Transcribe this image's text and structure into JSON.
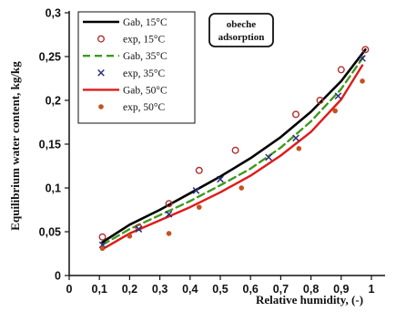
{
  "chart_data": {
    "type": "scatter",
    "xlabel": "Relative humidity, (-)",
    "ylabel": "Equilibrium water content, kg/kg",
    "xlim": [
      0,
      1
    ],
    "ylim": [
      0,
      0.3
    ],
    "x_ticks": [
      "0",
      "0,1",
      "0,2",
      "0,3",
      "0,4",
      "0,5",
      "0,6",
      "0,7",
      "0,8",
      "0,9",
      "1"
    ],
    "y_ticks": [
      "0",
      "0,05",
      "0,1",
      "0,15",
      "0,2",
      "0,25",
      "0,3"
    ],
    "grid": false,
    "legend_position": "top-left",
    "annotation": [
      "obeche",
      "adsorption"
    ],
    "series": [
      {
        "name": "Gab, 15°C",
        "kind": "line",
        "style": "solid",
        "color": "#000000",
        "x": [
          0.11,
          0.2,
          0.3,
          0.4,
          0.5,
          0.6,
          0.7,
          0.8,
          0.9,
          0.98
        ],
        "y": [
          0.038,
          0.058,
          0.075,
          0.094,
          0.113,
          0.134,
          0.158,
          0.187,
          0.222,
          0.258
        ]
      },
      {
        "name": "exp, 15°C",
        "kind": "marker",
        "marker": "open-circle",
        "color": "#b03030",
        "x": [
          0.11,
          0.23,
          0.33,
          0.43,
          0.55,
          0.75,
          0.83,
          0.9,
          0.98
        ],
        "y": [
          0.044,
          0.055,
          0.082,
          0.12,
          0.143,
          0.184,
          0.2,
          0.235,
          0.258
        ]
      },
      {
        "name": "Gab, 35°C",
        "kind": "line",
        "style": "dashed",
        "color": "#3f9a1f",
        "x": [
          0.11,
          0.2,
          0.3,
          0.4,
          0.5,
          0.6,
          0.7,
          0.8,
          0.9,
          0.98
        ],
        "y": [
          0.035,
          0.053,
          0.069,
          0.085,
          0.103,
          0.122,
          0.146,
          0.176,
          0.213,
          0.253
        ]
      },
      {
        "name": "exp, 35°C",
        "kind": "marker",
        "marker": "x",
        "color": "#2a2f7a",
        "x": [
          0.11,
          0.23,
          0.33,
          0.42,
          0.5,
          0.66,
          0.75,
          0.89,
          0.97
        ],
        "y": [
          0.035,
          0.053,
          0.07,
          0.097,
          0.11,
          0.135,
          0.157,
          0.205,
          0.248
        ]
      },
      {
        "name": "Gab, 50°C",
        "kind": "line",
        "style": "solid",
        "color": "#e01a1a",
        "x": [
          0.11,
          0.2,
          0.3,
          0.4,
          0.5,
          0.6,
          0.7,
          0.8,
          0.9,
          0.97
        ],
        "y": [
          0.03,
          0.048,
          0.063,
          0.078,
          0.095,
          0.114,
          0.137,
          0.164,
          0.201,
          0.24
        ]
      },
      {
        "name": "exp, 50°C",
        "kind": "marker",
        "marker": "filled-dot",
        "color": "#c8501e",
        "x": [
          0.11,
          0.2,
          0.33,
          0.43,
          0.57,
          0.76,
          0.88,
          0.97
        ],
        "y": [
          0.031,
          0.045,
          0.048,
          0.078,
          0.1,
          0.145,
          0.188,
          0.222
        ]
      }
    ]
  }
}
